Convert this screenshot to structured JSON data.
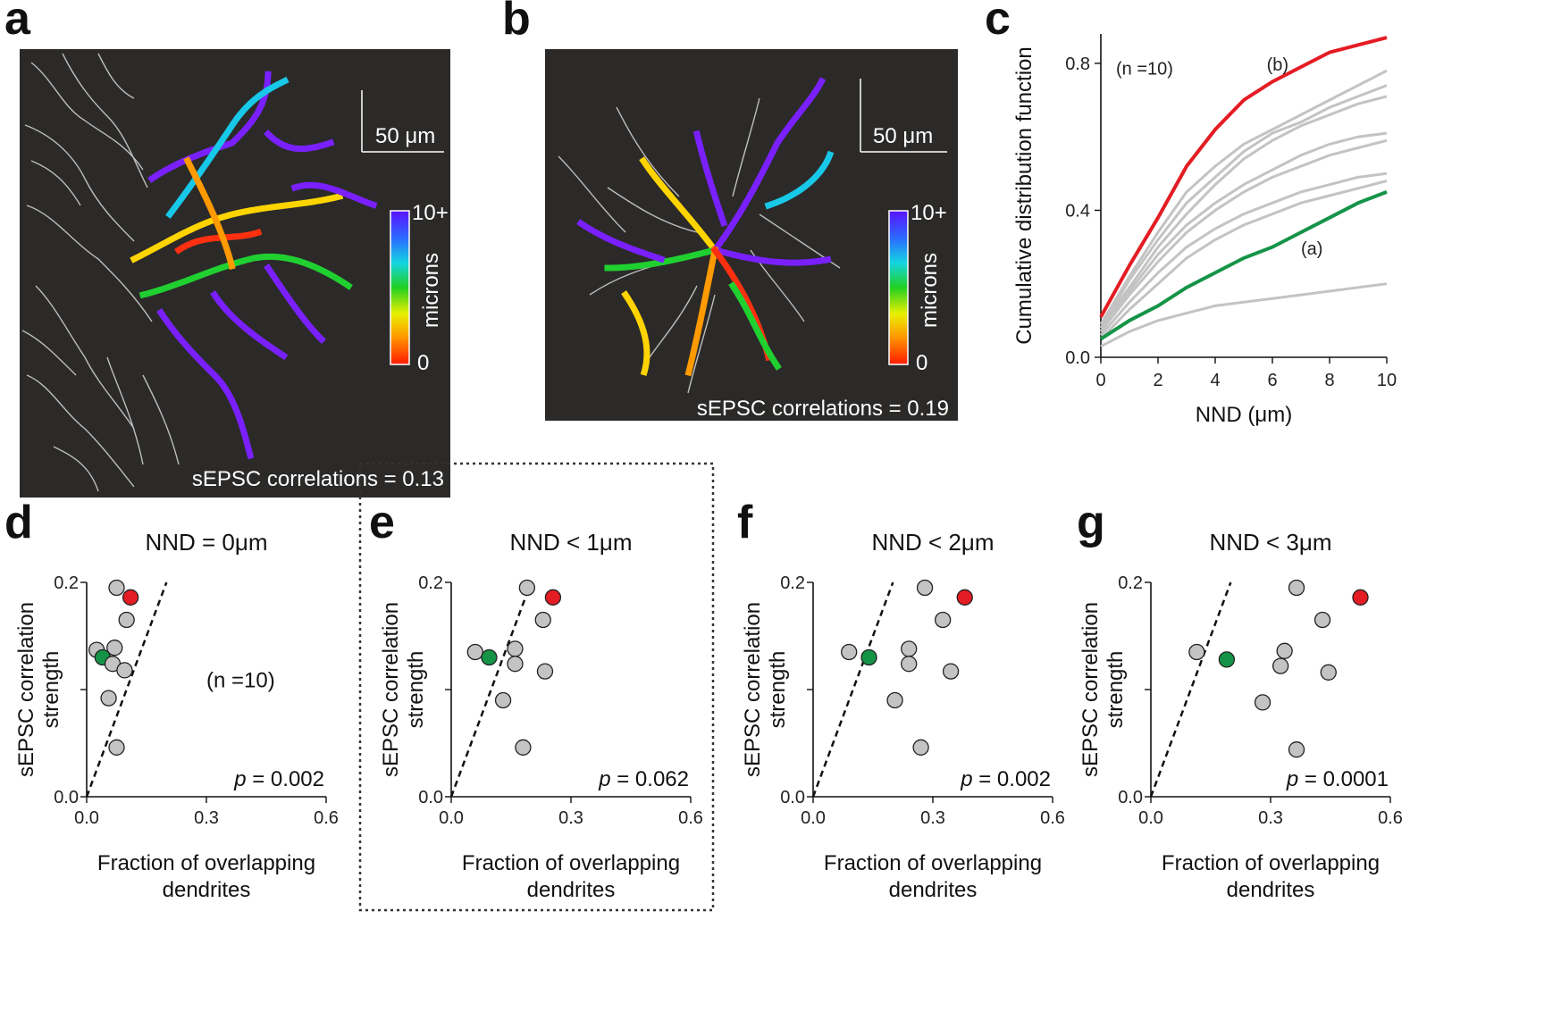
{
  "panel_labels": {
    "a": "a",
    "b": "b",
    "c": "c",
    "d": "d",
    "e": "e",
    "f": "f",
    "g": "g"
  },
  "images": {
    "a": {
      "scale_bar": "50 μm",
      "colorbar_label": "microns",
      "colorbar_max": "10+",
      "colorbar_min": "0",
      "caption": "sEPSC correlations = 0.13"
    },
    "b": {
      "scale_bar": "50 μm",
      "colorbar_label": "microns",
      "colorbar_max": "10+",
      "colorbar_min": "0",
      "caption": "sEPSC correlations = 0.19"
    }
  },
  "colors": {
    "red": "#e41c23",
    "green": "#159447",
    "gray": "#c3c3c3",
    "image_bg": "#2b2a29"
  },
  "chart_data": [
    {
      "id": "c",
      "type": "line",
      "title": "",
      "xlabel": "NND (μm)",
      "ylabel": "Cumulative distribution function",
      "xlim": [
        0,
        10
      ],
      "ylim": [
        0,
        0.88
      ],
      "xticks": [
        0,
        2,
        4,
        6,
        8,
        10
      ],
      "yticks": [
        0.0,
        0.4,
        0.8
      ],
      "ytick_labels": [
        "0.0",
        "0.4",
        "0.8"
      ],
      "annotation_n": "(n =10)",
      "x": [
        0,
        1,
        2,
        3,
        4,
        5,
        6,
        7,
        8,
        9,
        10
      ],
      "series": [
        {
          "name": "(b)",
          "color": "red",
          "values": [
            0.11,
            0.25,
            0.38,
            0.52,
            0.62,
            0.7,
            0.75,
            0.79,
            0.83,
            0.85,
            0.87
          ]
        },
        {
          "name": "(a)",
          "color": "green",
          "values": [
            0.05,
            0.1,
            0.14,
            0.19,
            0.23,
            0.27,
            0.3,
            0.34,
            0.38,
            0.42,
            0.45
          ]
        },
        {
          "name": "gray-1",
          "color": "gray",
          "values": [
            0.09,
            0.22,
            0.34,
            0.45,
            0.52,
            0.58,
            0.62,
            0.66,
            0.7,
            0.74,
            0.78
          ]
        },
        {
          "name": "gray-2",
          "color": "gray",
          "values": [
            0.08,
            0.21,
            0.32,
            0.42,
            0.49,
            0.56,
            0.61,
            0.64,
            0.68,
            0.71,
            0.74
          ]
        },
        {
          "name": "gray-3",
          "color": "gray",
          "values": [
            0.08,
            0.19,
            0.3,
            0.39,
            0.47,
            0.54,
            0.59,
            0.63,
            0.66,
            0.69,
            0.71
          ]
        },
        {
          "name": "gray-4",
          "color": "gray",
          "values": [
            0.07,
            0.18,
            0.28,
            0.36,
            0.42,
            0.47,
            0.51,
            0.55,
            0.58,
            0.6,
            0.61
          ]
        },
        {
          "name": "gray-5",
          "color": "gray",
          "values": [
            0.07,
            0.17,
            0.26,
            0.34,
            0.4,
            0.45,
            0.49,
            0.52,
            0.55,
            0.57,
            0.59
          ]
        },
        {
          "name": "gray-6",
          "color": "gray",
          "values": [
            0.06,
            0.15,
            0.23,
            0.3,
            0.35,
            0.39,
            0.42,
            0.45,
            0.47,
            0.49,
            0.5
          ]
        },
        {
          "name": "gray-7",
          "color": "gray",
          "values": [
            0.05,
            0.13,
            0.2,
            0.27,
            0.32,
            0.36,
            0.39,
            0.42,
            0.44,
            0.46,
            0.48
          ]
        },
        {
          "name": "gray-8",
          "color": "gray",
          "values": [
            0.03,
            0.07,
            0.1,
            0.12,
            0.14,
            0.15,
            0.16,
            0.17,
            0.18,
            0.19,
            0.2
          ]
        }
      ],
      "labels": {
        "b": "(b)",
        "a": "(a)"
      }
    },
    {
      "id": "d",
      "type": "scatter",
      "title": "NND = 0μm",
      "xlabel_line1": "Fraction of overlapping",
      "xlabel_line2": "dendrites",
      "ylabel_line1": "sEPSC correlation",
      "ylabel_line2": "strength",
      "xlim": [
        0,
        0.6
      ],
      "ylim": [
        0,
        0.2
      ],
      "xticks": [
        0.0,
        0.3,
        0.6
      ],
      "xtick_labels": [
        "0.0",
        "0.3",
        "0.6"
      ],
      "yticks": [
        0.0,
        0.1,
        0.2
      ],
      "ytick_labels": [
        "0.0",
        "",
        "0.2"
      ],
      "p_label": "p",
      "p_value": "= 0.002",
      "n_label": "(n =10)",
      "dashed_slope": 1.0,
      "points": [
        {
          "x": 0.075,
          "y": 0.195,
          "c": "gray"
        },
        {
          "x": 0.11,
          "y": 0.186,
          "c": "red"
        },
        {
          "x": 0.1,
          "y": 0.165,
          "c": "gray"
        },
        {
          "x": 0.025,
          "y": 0.137,
          "c": "gray"
        },
        {
          "x": 0.07,
          "y": 0.139,
          "c": "gray"
        },
        {
          "x": 0.04,
          "y": 0.13,
          "c": "green"
        },
        {
          "x": 0.065,
          "y": 0.124,
          "c": "gray"
        },
        {
          "x": 0.095,
          "y": 0.118,
          "c": "gray"
        },
        {
          "x": 0.055,
          "y": 0.092,
          "c": "gray"
        },
        {
          "x": 0.075,
          "y": 0.046,
          "c": "gray"
        }
      ]
    },
    {
      "id": "e",
      "type": "scatter",
      "title": "NND < 1μm",
      "xlabel_line1": "Fraction of overlapping",
      "xlabel_line2": "dendrites",
      "ylabel_line1": "sEPSC correlation",
      "ylabel_line2": "strength",
      "xlim": [
        0,
        0.6
      ],
      "ylim": [
        0,
        0.2
      ],
      "xticks": [
        0.0,
        0.3,
        0.6
      ],
      "xtick_labels": [
        "0.0",
        "0.3",
        "0.6"
      ],
      "yticks": [
        0.0,
        0.1,
        0.2
      ],
      "ytick_labels": [
        "0.0",
        "",
        "0.2"
      ],
      "p_label": "p",
      "p_value": "= 0.062",
      "n_label": "",
      "dashed_slope": 1.0,
      "points": [
        {
          "x": 0.19,
          "y": 0.195,
          "c": "gray"
        },
        {
          "x": 0.255,
          "y": 0.186,
          "c": "red"
        },
        {
          "x": 0.23,
          "y": 0.165,
          "c": "gray"
        },
        {
          "x": 0.06,
          "y": 0.135,
          "c": "gray"
        },
        {
          "x": 0.16,
          "y": 0.138,
          "c": "gray"
        },
        {
          "x": 0.095,
          "y": 0.13,
          "c": "green"
        },
        {
          "x": 0.16,
          "y": 0.124,
          "c": "gray"
        },
        {
          "x": 0.235,
          "y": 0.117,
          "c": "gray"
        },
        {
          "x": 0.13,
          "y": 0.09,
          "c": "gray"
        },
        {
          "x": 0.18,
          "y": 0.046,
          "c": "gray"
        }
      ]
    },
    {
      "id": "f",
      "type": "scatter",
      "title": "NND <  2μm",
      "xlabel_line1": "Fraction of overlapping",
      "xlabel_line2": "dendrites",
      "ylabel_line1": "sEPSC correlation",
      "ylabel_line2": "strength",
      "xlim": [
        0,
        0.6
      ],
      "ylim": [
        0,
        0.2
      ],
      "xticks": [
        0.0,
        0.3,
        0.6
      ],
      "xtick_labels": [
        "0.0",
        "0.3",
        "0.6"
      ],
      "yticks": [
        0.0,
        0.1,
        0.2
      ],
      "ytick_labels": [
        "0.0",
        "",
        "0.2"
      ],
      "p_label": "p",
      "p_value": "= 0.002",
      "n_label": "",
      "dashed_slope": 1.0,
      "points": [
        {
          "x": 0.28,
          "y": 0.195,
          "c": "gray"
        },
        {
          "x": 0.38,
          "y": 0.186,
          "c": "red"
        },
        {
          "x": 0.325,
          "y": 0.165,
          "c": "gray"
        },
        {
          "x": 0.09,
          "y": 0.135,
          "c": "gray"
        },
        {
          "x": 0.24,
          "y": 0.138,
          "c": "gray"
        },
        {
          "x": 0.14,
          "y": 0.13,
          "c": "green"
        },
        {
          "x": 0.24,
          "y": 0.124,
          "c": "gray"
        },
        {
          "x": 0.345,
          "y": 0.117,
          "c": "gray"
        },
        {
          "x": 0.205,
          "y": 0.09,
          "c": "gray"
        },
        {
          "x": 0.27,
          "y": 0.046,
          "c": "gray"
        }
      ]
    },
    {
      "id": "g",
      "type": "scatter",
      "title": "NND < 3μm",
      "xlabel_line1": "Fraction of overlapping",
      "xlabel_line2": "dendrites",
      "ylabel_line1": "sEPSC correlation",
      "ylabel_line2": "strength",
      "xlim": [
        0,
        0.6
      ],
      "ylim": [
        0,
        0.2
      ],
      "xticks": [
        0.0,
        0.3,
        0.6
      ],
      "xtick_labels": [
        "0.0",
        "0.3",
        "0.6"
      ],
      "yticks": [
        0.0,
        0.1,
        0.2
      ],
      "ytick_labels": [
        "0.0",
        "",
        "0.2"
      ],
      "p_label": "p",
      "p_value": "= 0.0001",
      "n_label": "",
      "dashed_slope": 1.0,
      "points": [
        {
          "x": 0.365,
          "y": 0.195,
          "c": "gray"
        },
        {
          "x": 0.525,
          "y": 0.186,
          "c": "red"
        },
        {
          "x": 0.43,
          "y": 0.165,
          "c": "gray"
        },
        {
          "x": 0.115,
          "y": 0.135,
          "c": "gray"
        },
        {
          "x": 0.335,
          "y": 0.136,
          "c": "gray"
        },
        {
          "x": 0.19,
          "y": 0.128,
          "c": "green"
        },
        {
          "x": 0.325,
          "y": 0.122,
          "c": "gray"
        },
        {
          "x": 0.445,
          "y": 0.116,
          "c": "gray"
        },
        {
          "x": 0.28,
          "y": 0.088,
          "c": "gray"
        },
        {
          "x": 0.365,
          "y": 0.044,
          "c": "gray"
        }
      ]
    }
  ]
}
